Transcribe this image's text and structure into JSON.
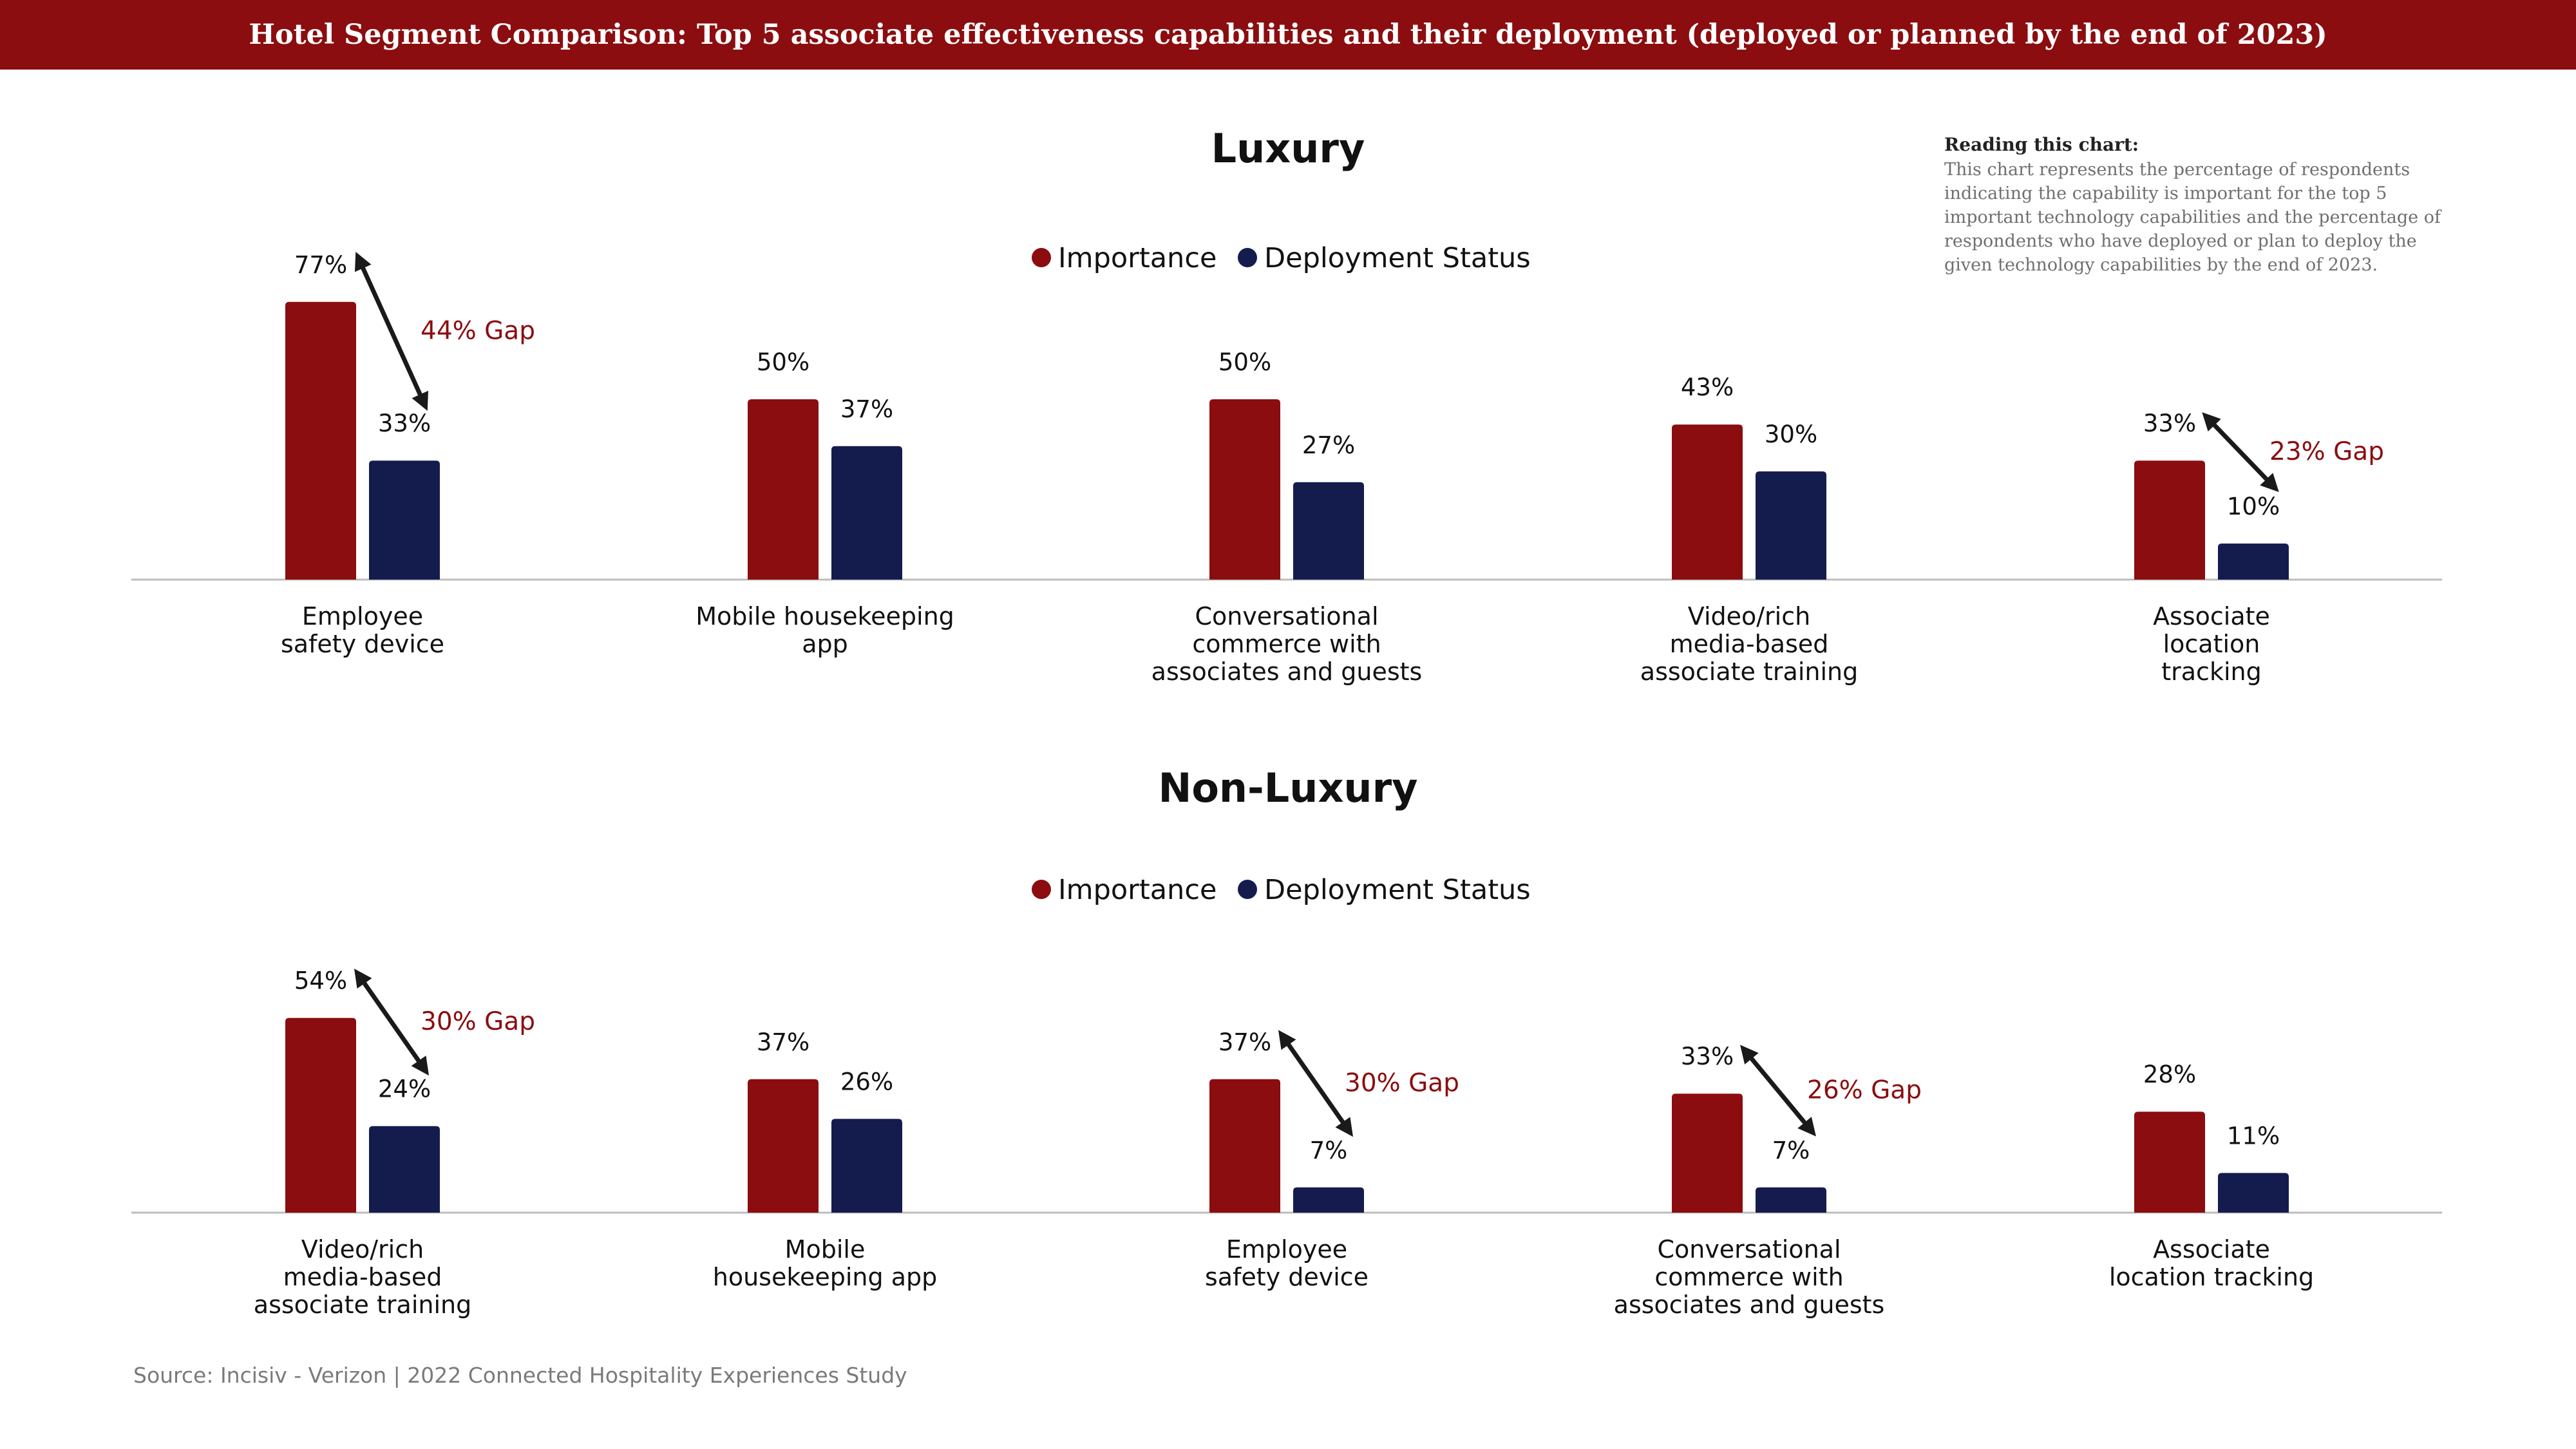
{
  "header": {
    "title": "Hotel Segment Comparison: Top 5 associate effectiveness capabilities and their deployment (deployed or planned by the end of 2023)"
  },
  "reading_note": {
    "title": "Reading this chart:",
    "body": "This chart represents the percentage of respondents indicating the capability is important for the top 5 important technology capabilities and the percentage of respondents who have deployed or plan to deploy the given technology capabilities by the end of 2023."
  },
  "source": "Source: Incisiv - Verizon | 2022 Connected Hospitality Experiences Study",
  "colors": {
    "importance": "#8b0d0f",
    "deployment": "#141c4e",
    "gap_text": "#8b0d0f",
    "arrow": "#1a1a1a",
    "axis": "#bdbdbd",
    "label": "#111111"
  },
  "chart_data": [
    {
      "type": "bar",
      "title": "Luxury",
      "categories": [
        "Employee\nsafety device",
        "Mobile housekeeping\napp",
        "Conversational\ncommerce with\nassociates and guests",
        "Video/rich\nmedia-based\nassociate training",
        "Associate\nlocation\ntracking"
      ],
      "series": [
        {
          "name": "Importance",
          "values": [
            77,
            50,
            50,
            43,
            33
          ],
          "labels": [
            "77%",
            "50%",
            "50%",
            "43%",
            "33%"
          ]
        },
        {
          "name": "Deployment Status",
          "values": [
            33,
            37,
            27,
            30,
            10
          ],
          "labels": [
            "33%",
            "37%",
            "27%",
            "30%",
            "10%"
          ]
        }
      ],
      "gaps": [
        {
          "category_index": 0,
          "label": "44% Gap"
        },
        {
          "category_index": 4,
          "label": "23% Gap"
        }
      ],
      "legend": "top-center",
      "ylim": [
        0,
        100
      ]
    },
    {
      "type": "bar",
      "title": "Non-Luxury",
      "categories": [
        "Video/rich\nmedia-based\nassociate training",
        "Mobile\nhousekeeping app",
        "Employee\nsafety device",
        "Conversational\ncommerce with\nassociates and guests",
        "Associate\nlocation tracking"
      ],
      "series": [
        {
          "name": "Importance",
          "values": [
            54,
            37,
            37,
            33,
            28
          ],
          "labels": [
            "54%",
            "37%",
            "37%",
            "33%",
            "28%"
          ]
        },
        {
          "name": "Deployment Status",
          "values": [
            24,
            26,
            7,
            7,
            11
          ],
          "labels": [
            "24%",
            "26%",
            "7%",
            "7%",
            "11%"
          ]
        }
      ],
      "gaps": [
        {
          "category_index": 0,
          "label": "30% Gap"
        },
        {
          "category_index": 2,
          "label": "30% Gap"
        },
        {
          "category_index": 3,
          "label": "26% Gap"
        }
      ],
      "legend": "top-center",
      "ylim": [
        0,
        100
      ]
    }
  ]
}
